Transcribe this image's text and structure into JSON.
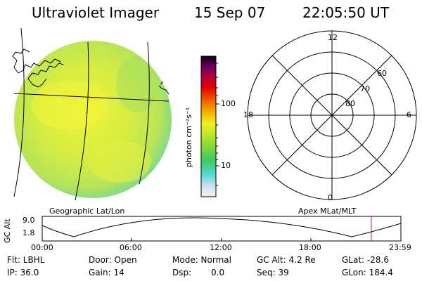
{
  "header": {
    "instrument": "Ultraviolet Imager",
    "date": "15 Sep 07",
    "time": "22:05:50 UT"
  },
  "left_panel": {
    "caption": "Geographic Lat/Lon"
  },
  "colorbar": {
    "unit": "photon cm⁻²s⁻¹",
    "ticks": [
      "100",
      "10"
    ],
    "scale": "log"
  },
  "polar_plot": {
    "caption": "Apex MLat/MLT",
    "mlt_labels": {
      "top": "12",
      "right": "6",
      "bottom": "0",
      "left": "18"
    },
    "mlat_labels": [
      "60",
      "70",
      "80"
    ]
  },
  "altitude_plot": {
    "ylabel": "GC Alt",
    "yticks": [
      "9.0",
      "1.8"
    ],
    "xticks": [
      "00:00",
      "06:00",
      "12:00",
      "18:00",
      "23:59"
    ],
    "marker_time": "22:05",
    "marker_color": "#c02020"
  },
  "info": {
    "filter": "Flt: LBHL",
    "door": "Door: Open",
    "mode": "Mode: Normal",
    "gc_alt": "GC Alt: 4.2 Re",
    "glat": "GLat: -28.6",
    "ip": "IP: 36.0",
    "gain": "Gain: 14",
    "dsp_label": "Dsp:",
    "dsp_value": "0.0",
    "seq": "Seq: 39",
    "glon": "GLon: 184.4"
  },
  "colors": {
    "disk_main": "#c8e84a",
    "disk_bright": "#f0f040",
    "disk_edge": "#60d0a0"
  }
}
